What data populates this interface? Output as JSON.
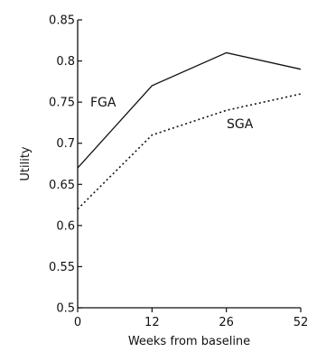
{
  "chart_data": {
    "type": "line",
    "title": "",
    "xlabel": "Weeks from baseline",
    "ylabel": "Utility",
    "x": [
      "0",
      "12",
      "26",
      "52"
    ],
    "yticks": [
      0.5,
      0.55,
      0.6,
      0.65,
      0.7,
      0.75,
      0.8,
      0.85
    ],
    "ytick_labels": [
      "0.5",
      "0.55",
      "0.6",
      "0.65",
      "0.7",
      "0.75",
      "0.8",
      "0.85"
    ],
    "ylim": [
      0.5,
      0.85
    ],
    "grid": false,
    "legend": "none",
    "series": [
      {
        "name": "FGA",
        "values": [
          0.67,
          0.77,
          0.81,
          0.79
        ],
        "style": "solid",
        "color": "#111111"
      },
      {
        "name": "SGA",
        "values": [
          0.62,
          0.71,
          0.74,
          0.76
        ],
        "style": "dotted",
        "color": "#111111"
      }
    ]
  }
}
